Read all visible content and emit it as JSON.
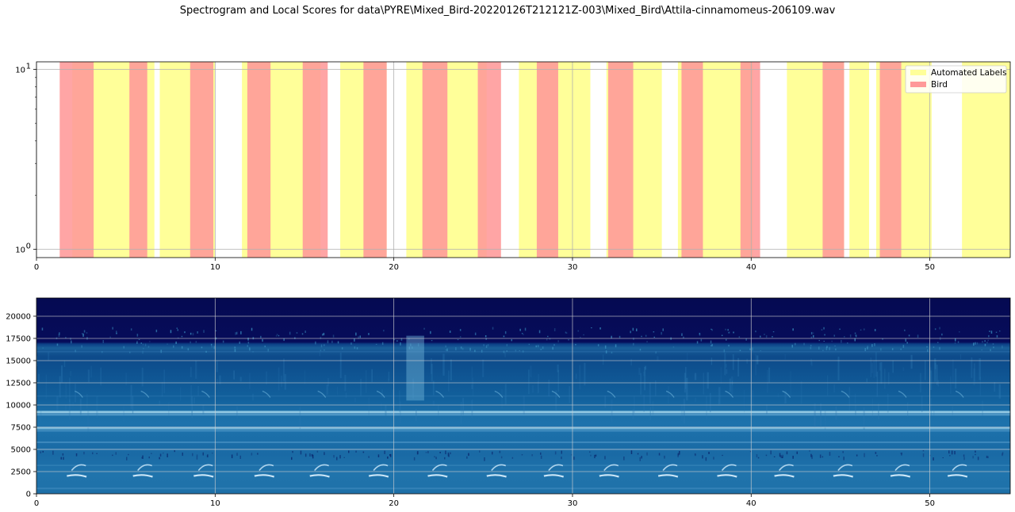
{
  "figure": {
    "title": "Spectrogram and Local Scores for data\\PYRE\\Mixed_Bird-20220126T212121Z-003\\Mixed_Bird\\Attila-cinnamomeus-206109.wav"
  },
  "chart_data": [
    {
      "type": "area",
      "panel": "local-scores",
      "yscale": "log",
      "xlim": [
        0,
        54.5
      ],
      "ylim": [
        0.9,
        11
      ],
      "grid": true,
      "x_ticks": [
        "0",
        "10",
        "20",
        "30",
        "40",
        "50"
      ],
      "x_tick_values": [
        0,
        10,
        20,
        30,
        40,
        50
      ],
      "y_ticks": [
        {
          "value": 1,
          "base": "10",
          "exp": "0"
        },
        {
          "value": 10,
          "base": "10",
          "exp": "1"
        }
      ],
      "legend": {
        "position": "top-right",
        "entries": [
          {
            "label": "Automated Labels",
            "color": "#ffff99"
          },
          {
            "label": "Bird",
            "color": "#ff9999"
          }
        ]
      },
      "series": [
        {
          "name": "Automated Labels",
          "color": "#ffff99",
          "intervals": [
            [
              2.0,
              6.6
            ],
            [
              6.9,
              10.0
            ],
            [
              11.5,
              15.9
            ],
            [
              17.0,
              19.6
            ],
            [
              20.7,
              25.2
            ],
            [
              27.0,
              31.0
            ],
            [
              31.9,
              35.0
            ],
            [
              35.9,
              40.1
            ],
            [
              42.0,
              45.2
            ],
            [
              45.5,
              46.6
            ],
            [
              47.0,
              50.1
            ],
            [
              51.8,
              54.5
            ]
          ]
        },
        {
          "name": "Bird",
          "color": "#ff9999",
          "intervals": [
            [
              1.3,
              3.2
            ],
            [
              5.2,
              6.2
            ],
            [
              8.6,
              9.9
            ],
            [
              11.8,
              13.1
            ],
            [
              14.9,
              16.3
            ],
            [
              18.3,
              19.6
            ],
            [
              21.6,
              23.0
            ],
            [
              24.7,
              26.0
            ],
            [
              28.0,
              29.2
            ],
            [
              32.0,
              33.4
            ],
            [
              36.1,
              37.3
            ],
            [
              39.4,
              40.5
            ],
            [
              44.0,
              45.2
            ],
            [
              47.2,
              48.4
            ]
          ]
        }
      ]
    },
    {
      "type": "heatmap",
      "panel": "spectrogram",
      "xlim": [
        0,
        54.5
      ],
      "ylim": [
        0,
        22050
      ],
      "grid": true,
      "colormap": "ocean-blue",
      "x_ticks": [
        "0",
        "10",
        "20",
        "30",
        "40",
        "50"
      ],
      "x_tick_values": [
        0,
        10,
        20,
        30,
        40,
        50
      ],
      "y_ticks": [
        "0",
        "2500",
        "5000",
        "7500",
        "10000",
        "12500",
        "15000",
        "17500",
        "20000"
      ],
      "y_tick_values": [
        0,
        2500,
        5000,
        7500,
        10000,
        12500,
        15000,
        17500,
        20000
      ],
      "call_onsets": [
        1.7,
        5.4,
        8.8,
        12.2,
        15.3,
        18.6,
        21.9,
        25.2,
        28.4,
        31.5,
        34.8,
        38.1,
        41.3,
        44.6,
        47.8,
        51.0
      ]
    }
  ]
}
